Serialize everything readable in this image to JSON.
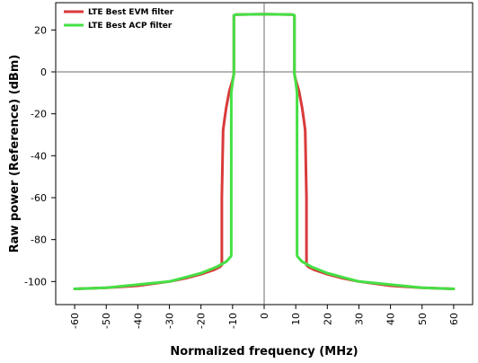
{
  "chart_data": {
    "type": "line",
    "title": "",
    "xlabel": "Normalized frequency (MHz)",
    "ylabel": "Raw power (Reference) (dBm)",
    "xlim": [
      -66,
      66
    ],
    "ylim": [
      -111,
      33
    ],
    "xticks": [
      -60,
      -50,
      -40,
      -30,
      -20,
      -10,
      0,
      10,
      20,
      30,
      40,
      50,
      60
    ],
    "yticks": [
      -100,
      -80,
      -60,
      -40,
      -20,
      0,
      20
    ],
    "grid": false,
    "legend_position": "top-left",
    "series": [
      {
        "name": "LTE Best EVM filter",
        "color": "#d93a3a",
        "x": [
          -60,
          -50,
          -40,
          -30,
          -25,
          -20,
          -16,
          -14,
          -13.4,
          -13.4,
          -13,
          -12.5,
          -12,
          -11,
          -10,
          -9.6,
          -9.6,
          -9,
          0,
          9,
          9.6,
          9.6,
          10,
          11,
          12,
          12.5,
          13,
          13.4,
          13.4,
          14,
          16,
          20,
          25,
          30,
          40,
          50,
          60
        ],
        "y": [
          -103.5,
          -103,
          -102,
          -100,
          -98.5,
          -96.5,
          -94.5,
          -93,
          -92,
          -60,
          -28,
          -22,
          -17,
          -9,
          -4,
          -1,
          27,
          27.3,
          27.5,
          27.3,
          27,
          -1,
          -4,
          -9,
          -17,
          -22,
          -28,
          -60,
          -92,
          -93,
          -94.5,
          -96.5,
          -98.5,
          -100,
          -102,
          -103,
          -103.5
        ]
      },
      {
        "name": "LTE Best ACP filter",
        "color": "#45e045",
        "x": [
          -60,
          -50,
          -40,
          -30,
          -25,
          -20,
          -15,
          -12,
          -10.5,
          -10.4,
          -10.4,
          -10,
          -9.6,
          -9.6,
          -9,
          0,
          9,
          9.6,
          9.6,
          10,
          10.4,
          10.4,
          10.5,
          12,
          15,
          20,
          25,
          30,
          40,
          50,
          60
        ],
        "y": [
          -103.5,
          -103,
          -101.5,
          -100,
          -98,
          -96,
          -93,
          -90.5,
          -88,
          -87,
          -10,
          -5,
          -1,
          27,
          27.3,
          27.5,
          27.3,
          27,
          -1,
          -5,
          -10,
          -87,
          -88,
          -90.5,
          -93,
          -96,
          -98,
          -100,
          -101.5,
          -103,
          -103.5
        ]
      }
    ]
  }
}
